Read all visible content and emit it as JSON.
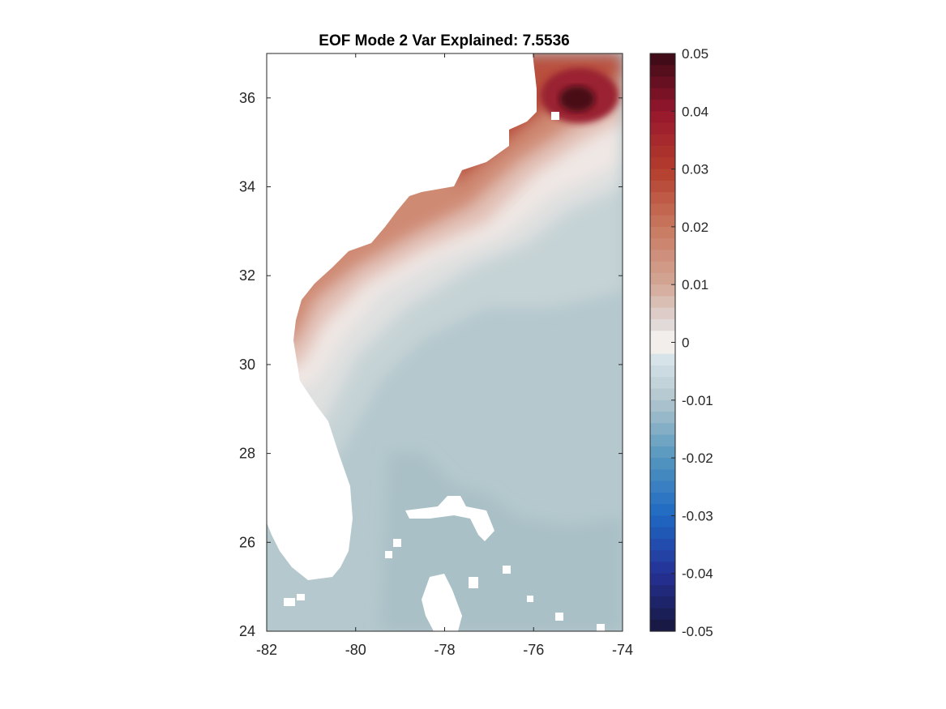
{
  "chart_data": {
    "type": "heatmap",
    "title": "EOF Mode 2 Var Explained: 7.5536",
    "xlim": [
      -82,
      -74
    ],
    "ylim": [
      24,
      37
    ],
    "x_ticks": [
      -82,
      -80,
      -78,
      -76,
      -74
    ],
    "y_ticks": [
      24,
      26,
      28,
      30,
      32,
      34,
      36
    ],
    "x_tick_labels": [
      "-82",
      "-80",
      "-78",
      "-76",
      "-74"
    ],
    "y_tick_labels": [
      "24",
      "26",
      "28",
      "30",
      "32",
      "34",
      "36"
    ],
    "colorbar": {
      "min": -0.05,
      "max": 0.05,
      "ticks": [
        0.05,
        0.04,
        0.03,
        0.02,
        0.01,
        0,
        -0.01,
        -0.02,
        -0.03,
        -0.04,
        -0.05
      ],
      "tick_labels": [
        "0.05",
        "0.04",
        "0.03",
        "0.02",
        "0.01",
        "0",
        "-0.01",
        "-0.02",
        "-0.03",
        "-0.04",
        "-0.05"
      ],
      "colormap": "balance (diverging red-blue)"
    },
    "field_features": [
      {
        "feature": "maximum",
        "lon": -75.0,
        "lat": 35.9,
        "value": 0.05
      },
      {
        "feature": "positive coastal band",
        "lon_range": [
          -81.5,
          -75.5
        ],
        "lat_range": [
          30.0,
          35.5
        ],
        "value": 0.012
      },
      {
        "feature": "near-zero offshore band",
        "lon_range": [
          -80.0,
          -74.0
        ],
        "lat_range": [
          28.5,
          34.5
        ],
        "value": 0.0
      },
      {
        "feature": "negative southern region",
        "lon_range": [
          -79.0,
          -74.0
        ],
        "lat_range": [
          24.0,
          29.5
        ],
        "value": -0.009
      }
    ]
  },
  "colors": {
    "land_mask": "#ffffff",
    "axis": "#262626",
    "peak": "#3d0a12",
    "positive": "#c8765e",
    "zero": "#f2eceb",
    "negative": "#b0c5ca"
  }
}
